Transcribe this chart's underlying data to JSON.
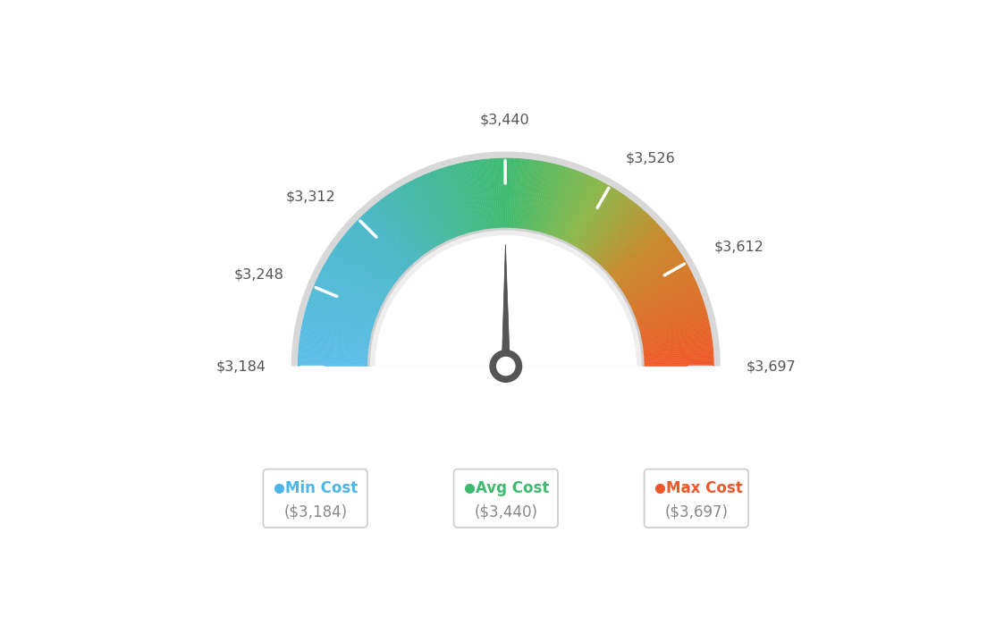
{
  "min_val": 3184,
  "max_val": 3697,
  "avg_val": 3440,
  "tick_labels": [
    "$3,184",
    "$3,248",
    "$3,312",
    "$3,440",
    "$3,526",
    "$3,612",
    "$3,697"
  ],
  "tick_values": [
    3184,
    3248,
    3312,
    3440,
    3526,
    3612,
    3697
  ],
  "legend_items": [
    {
      "label": "Min Cost",
      "value": "($3,184)",
      "color": "#4db6e8"
    },
    {
      "label": "Avg Cost",
      "value": "($3,440)",
      "color": "#3dba6e"
    },
    {
      "label": "Max Cost",
      "value": "($3,697)",
      "color": "#f05828"
    }
  ],
  "gradient_colors": [
    [
      0.0,
      "#5bbde8"
    ],
    [
      0.25,
      "#4ab8c8"
    ],
    [
      0.5,
      "#3dba6e"
    ],
    [
      0.65,
      "#8ab84a"
    ],
    [
      0.78,
      "#c8882a"
    ],
    [
      1.0,
      "#f05828"
    ]
  ],
  "background_color": "#ffffff",
  "n_segments": 300,
  "R_outer": 0.82,
  "R_inner": 0.54,
  "R_border": 0.025,
  "needle_color": "#555555",
  "needle_base_color": "#555555"
}
